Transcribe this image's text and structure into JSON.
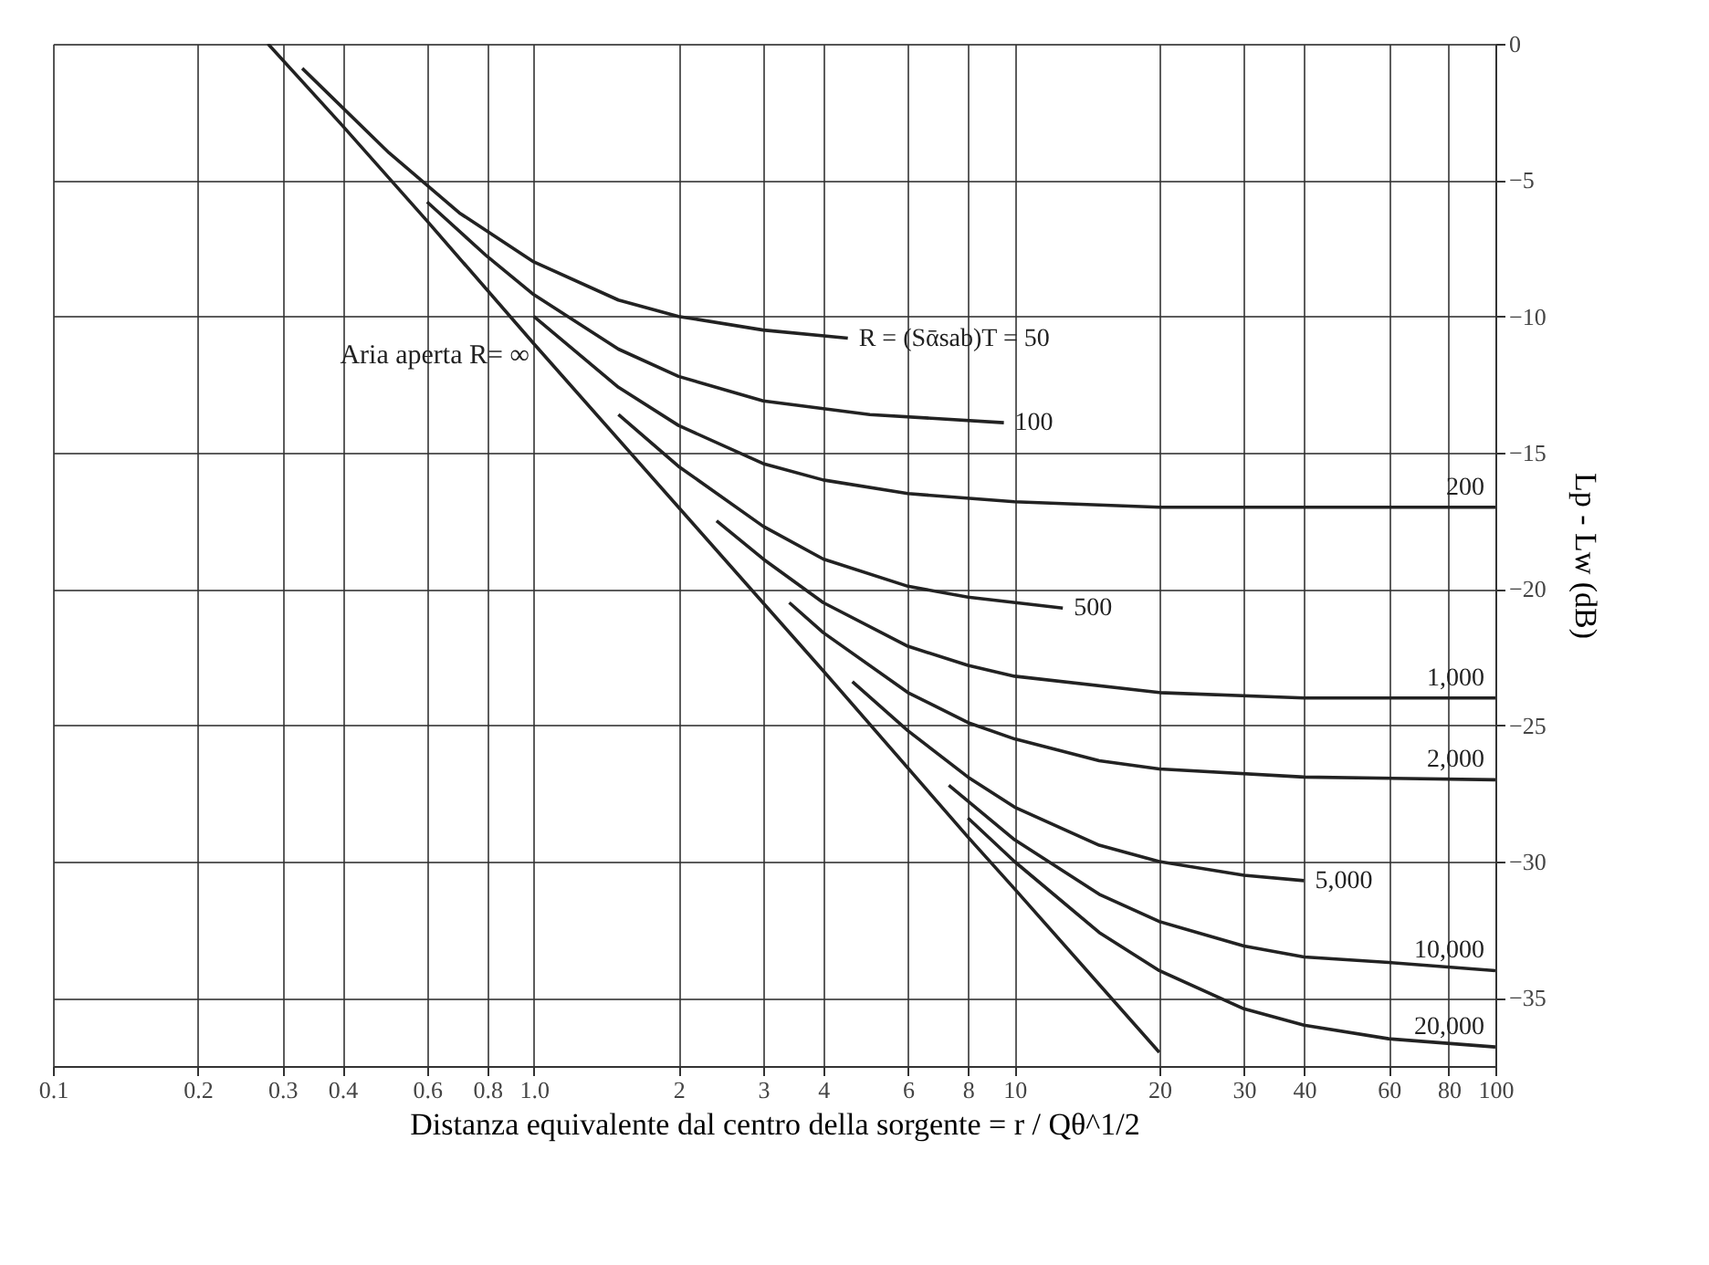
{
  "chart_data": {
    "type": "line",
    "xlabel": "Distanza equivalente dal centro della sorgente = r / Qθ^1/2",
    "ylabel": "Lp - Lw (dB)",
    "log": "x",
    "grid": true,
    "marker": "none",
    "line_style": "solid",
    "xlim": [
      0.1,
      100
    ],
    "xticks": [
      0.1,
      0.2,
      0.3,
      0.4,
      0.6,
      0.8,
      {
        "value": 1,
        "label": "1.0"
      },
      2,
      3,
      4,
      6,
      8,
      10,
      20,
      30,
      40,
      60,
      80,
      100
    ],
    "ylim": [
      -37.5,
      0
    ],
    "yticks": [
      0,
      -5,
      -10,
      -15,
      -20,
      -25,
      -30,
      -35
    ],
    "annotations": [
      {
        "text": "Aria aperta R= ∞",
        "x": 1.05,
        "y": -11.4
      }
    ],
    "series": [
      {
        "color": "#222222",
        "x": [
          0.28,
          0.4,
          0.6,
          1,
          2,
          4,
          8,
          10,
          20
        ],
        "values": [
          0.0,
          -3.0,
          -6.5,
          -11.0,
          -17.0,
          -23.0,
          -29.1,
          -31.0,
          -37.0
        ]
      },
      {
        "name": "R = (Sᾱsab)T = 50",
        "color": "#222222",
        "x": [
          0.33,
          0.5,
          0.7,
          1,
          1.5,
          2,
          3,
          4.5
        ],
        "values": [
          -0.9,
          -4.0,
          -6.2,
          -8.0,
          -9.4,
          -10.0,
          -10.5,
          -10.8
        ]
      },
      {
        "name": "100",
        "color": "#222222",
        "x": [
          0.6,
          0.8,
          1,
          1.5,
          2,
          3,
          5,
          9.5
        ],
        "values": [
          -5.8,
          -7.8,
          -9.2,
          -11.2,
          -12.2,
          -13.1,
          -13.6,
          -13.9
        ]
      },
      {
        "name": "200",
        "color": "#222222",
        "x": [
          1,
          1.5,
          2,
          3,
          4,
          6,
          10,
          20,
          100
        ],
        "values": [
          -10.0,
          -12.6,
          -14.0,
          -15.4,
          -16.0,
          -16.5,
          -16.8,
          -17.0,
          -17.0
        ]
      },
      {
        "name": "500",
        "color": "#222222",
        "x": [
          1.5,
          2,
          3,
          4,
          6,
          8,
          12.6
        ],
        "values": [
          -13.6,
          -15.5,
          -17.7,
          -18.9,
          -19.9,
          -20.3,
          -20.7
        ]
      },
      {
        "name": "1,000",
        "color": "#222222",
        "x": [
          2.4,
          3,
          4,
          6,
          8,
          10,
          20,
          40,
          100
        ],
        "values": [
          -17.5,
          -18.9,
          -20.5,
          -22.1,
          -22.8,
          -23.2,
          -23.8,
          -24.0,
          -24.0
        ]
      },
      {
        "name": "2,000",
        "color": "#222222",
        "x": [
          3.4,
          4,
          6,
          8,
          10,
          15,
          20,
          40,
          100
        ],
        "values": [
          -20.5,
          -21.6,
          -23.8,
          -24.9,
          -25.5,
          -26.3,
          -26.6,
          -26.9,
          -27.0
        ]
      },
      {
        "name": "5,000",
        "color": "#222222",
        "x": [
          4.6,
          6,
          8,
          10,
          15,
          20,
          30,
          40
        ],
        "values": [
          -23.4,
          -25.2,
          -26.9,
          -28.0,
          -29.4,
          -30.0,
          -30.5,
          -30.7
        ]
      },
      {
        "name": "10,000",
        "color": "#222222",
        "x": [
          7.3,
          10,
          15,
          20,
          30,
          40,
          60,
          100
        ],
        "values": [
          -27.2,
          -29.2,
          -31.2,
          -32.2,
          -33.1,
          -33.5,
          -33.7,
          -34.0
        ]
      },
      {
        "name": "20,000",
        "color": "#222222",
        "x": [
          8,
          10,
          15,
          20,
          30,
          40,
          60,
          100
        ],
        "values": [
          -28.4,
          -30.0,
          -32.6,
          -34.0,
          -35.4,
          -36.0,
          -36.5,
          -36.8
        ]
      }
    ]
  }
}
